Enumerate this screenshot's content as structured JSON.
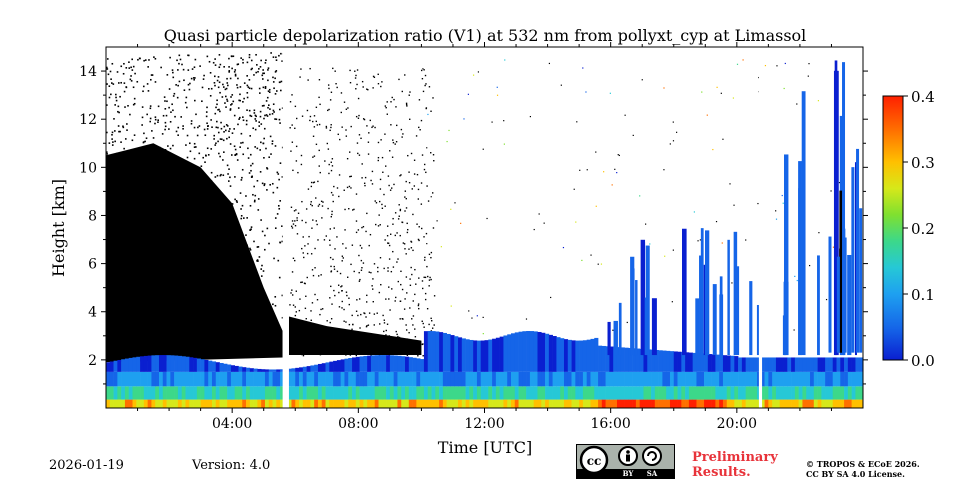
{
  "chart_data": {
    "type": "heatmap",
    "title": "Quasi particle depolarization ratio (V1) at 532 nm from pollyxt_cyp at Limassol",
    "xlabel": "Time [UTC]",
    "ylabel": "Height [km]",
    "xlim_hours": [
      0,
      24
    ],
    "ylim_km": [
      0,
      15
    ],
    "x_ticks": [
      {
        "value": 4,
        "label": "04:00"
      },
      {
        "value": 8,
        "label": "08:00"
      },
      {
        "value": 12,
        "label": "12:00"
      },
      {
        "value": 16,
        "label": "16:00"
      },
      {
        "value": 20,
        "label": "20:00"
      }
    ],
    "y_ticks": [
      {
        "value": 2,
        "label": "2"
      },
      {
        "value": 4,
        "label": "4"
      },
      {
        "value": 6,
        "label": "6"
      },
      {
        "value": 8,
        "label": "8"
      },
      {
        "value": 10,
        "label": "10"
      },
      {
        "value": 12,
        "label": "12"
      },
      {
        "value": 14,
        "label": "14"
      }
    ],
    "colorbar": {
      "min": 0.0,
      "max": 0.4,
      "ticks": [
        {
          "value": 0.0,
          "label": "0.0"
        },
        {
          "value": 0.1,
          "label": "0.1"
        },
        {
          "value": 0.2,
          "label": "0.2"
        },
        {
          "value": 0.3,
          "label": "0.3"
        },
        {
          "value": 0.4,
          "label": "0.4"
        }
      ],
      "colormap": [
        "#0a1fd0",
        "#1565e8",
        "#1ea0f0",
        "#26c8d6",
        "#3cd88a",
        "#7fe030",
        "#d6e81a",
        "#ffc000",
        "#ff7000",
        "#ff2000"
      ]
    },
    "data_gaps_hours": [
      [
        5.6,
        5.8
      ],
      [
        20.7,
        20.8
      ]
    ],
    "regions": [
      {
        "name": "low-layer-aerosol",
        "t_start": 0,
        "t_end": 24,
        "h_bottom": 0.0,
        "h_top": 2.2,
        "typical_value": 0.08
      },
      {
        "name": "surface-high-depol",
        "t_start": 0,
        "t_end": 24,
        "h_bottom": 0.0,
        "h_top": 0.4,
        "typical_value": 0.28
      },
      {
        "name": "elevated-layer",
        "t_start": 10.0,
        "t_end": 15.5,
        "h_bottom": 2.0,
        "h_top": 3.2,
        "typical_value": 0.05
      }
    ]
  },
  "footer": {
    "date": "2026-01-19",
    "version": "Version: 4.0",
    "license_badge": {
      "cc": "cc",
      "by": "BY",
      "sa": "SA"
    },
    "preliminary_line1": "Preliminary",
    "preliminary_line2": "Results.",
    "copyright_line1": "© TROPOS & ECoE 2026.",
    "copyright_line2": "CC BY SA 4.0 License."
  }
}
